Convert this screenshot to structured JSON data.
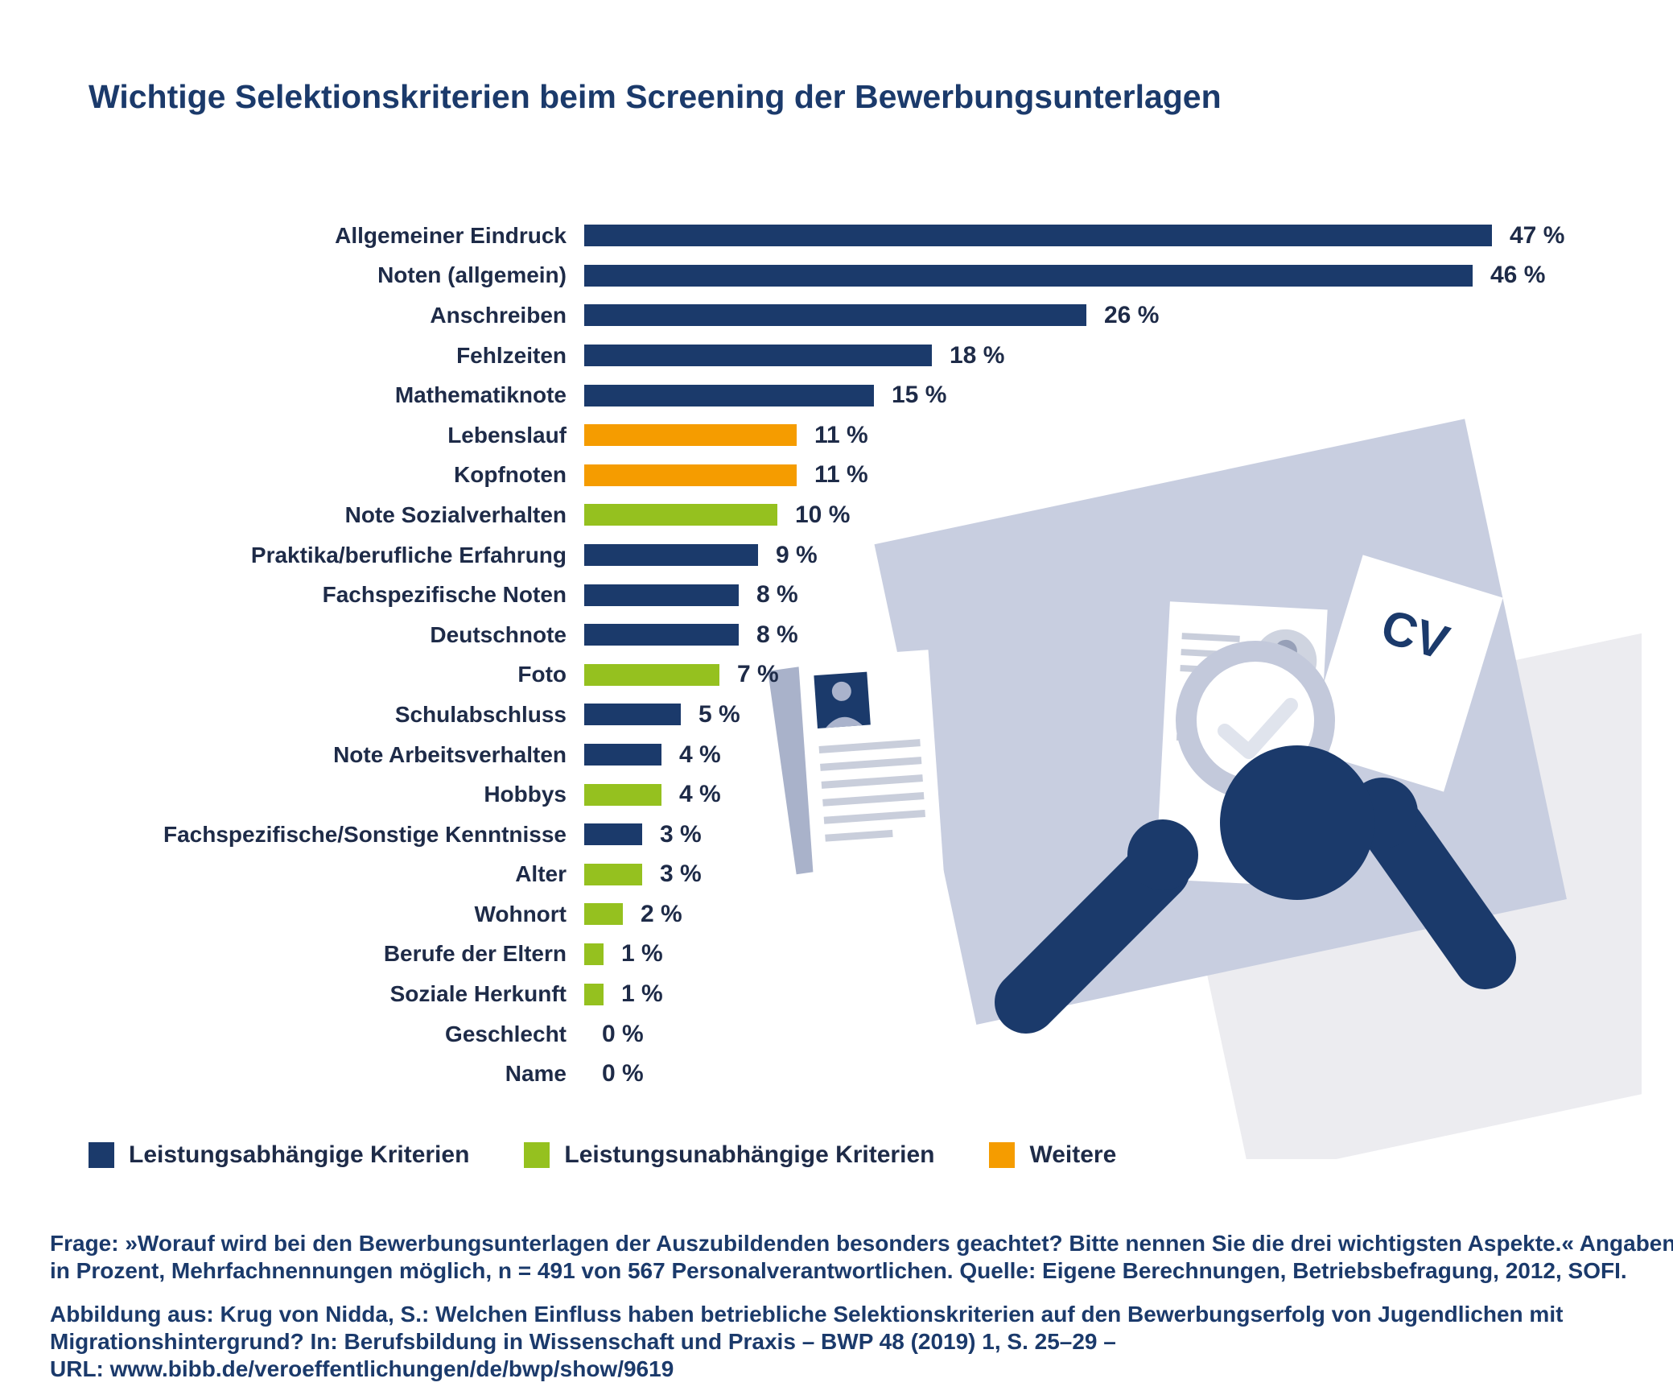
{
  "page": {
    "title": "Wichtige Selektionskriterien beim Screening der Bewerbungsunterlagen"
  },
  "chart_data": {
    "type": "bar",
    "orientation": "horizontal",
    "unit": "%",
    "title": "Wichtige Selektionskriterien beim Screening der Bewerbungsunterlagen",
    "xlim": [
      0,
      50
    ],
    "categories": [
      "Allgemeiner Eindruck",
      "Noten (allgemein)",
      "Anschreiben",
      "Fehlzeiten",
      "Mathematiknote",
      "Lebenslauf",
      "Kopfnoten",
      "Note Sozialverhalten",
      "Praktika/berufliche Erfahrung",
      "Fachspezifische Noten",
      "Deutschnote",
      "Foto",
      "Schulabschluss",
      "Note Arbeitsverhalten",
      "Hobbys",
      "Fachspezifische/Sonstige Kenntnisse",
      "Alter",
      "Wohnort",
      "Berufe der Eltern",
      "Soziale Herkunft",
      "Geschlecht",
      "Name"
    ],
    "values": [
      47,
      46,
      26,
      18,
      15,
      11,
      11,
      10,
      9,
      8,
      8,
      7,
      5,
      4,
      4,
      3,
      3,
      2,
      1,
      1,
      0,
      0
    ],
    "groups": [
      "performance",
      "performance",
      "performance",
      "performance",
      "performance",
      "other",
      "other",
      "non_performance",
      "performance",
      "performance",
      "performance",
      "non_performance",
      "performance",
      "performance",
      "non_performance",
      "performance",
      "non_performance",
      "non_performance",
      "non_performance",
      "non_performance",
      "none",
      "none"
    ],
    "colors": {
      "performance": "#1B3A6B",
      "non_performance": "#95C11F",
      "other": "#F59C00",
      "none": "transparent"
    },
    "legend": [
      {
        "key": "performance",
        "label": "Leistungsabhängige Kriterien"
      },
      {
        "key": "non_performance",
        "label": "Leistungsunabhängige Kriterien"
      },
      {
        "key": "other",
        "label": "Weitere"
      }
    ],
    "legend_position": "bottom",
    "grid": false
  },
  "illustration": {
    "cv_label": "CV"
  },
  "footer": {
    "para1_lines": [
      "Frage: »Worauf wird bei den Bewerbungsunterlagen der Auszubildenden besonders geachtet? Bitte nennen Sie die drei wichtigsten Aspekte.« Angaben",
      "in Prozent, Mehrfachnennungen möglich, n = 491 von 567 Personalverantwortlichen. Quelle: Eigene Berechnungen, Betriebsbefragung, 2012, SOFI."
    ],
    "para2_lines": [
      "Abbildung aus: Krug von Nidda, S.: Welchen Einfluss haben betriebliche Selektionskriterien auf den Bewerbungserfolg von Jugendlichen mit",
      "Migrationshintergrund? In: Berufsbildung in Wissenschaft und Praxis – BWP 48 (2019) 1, S. 25–29 –",
      "URL: www.bibb.de/veroeffentlichungen/de/bwp/show/9619"
    ]
  }
}
